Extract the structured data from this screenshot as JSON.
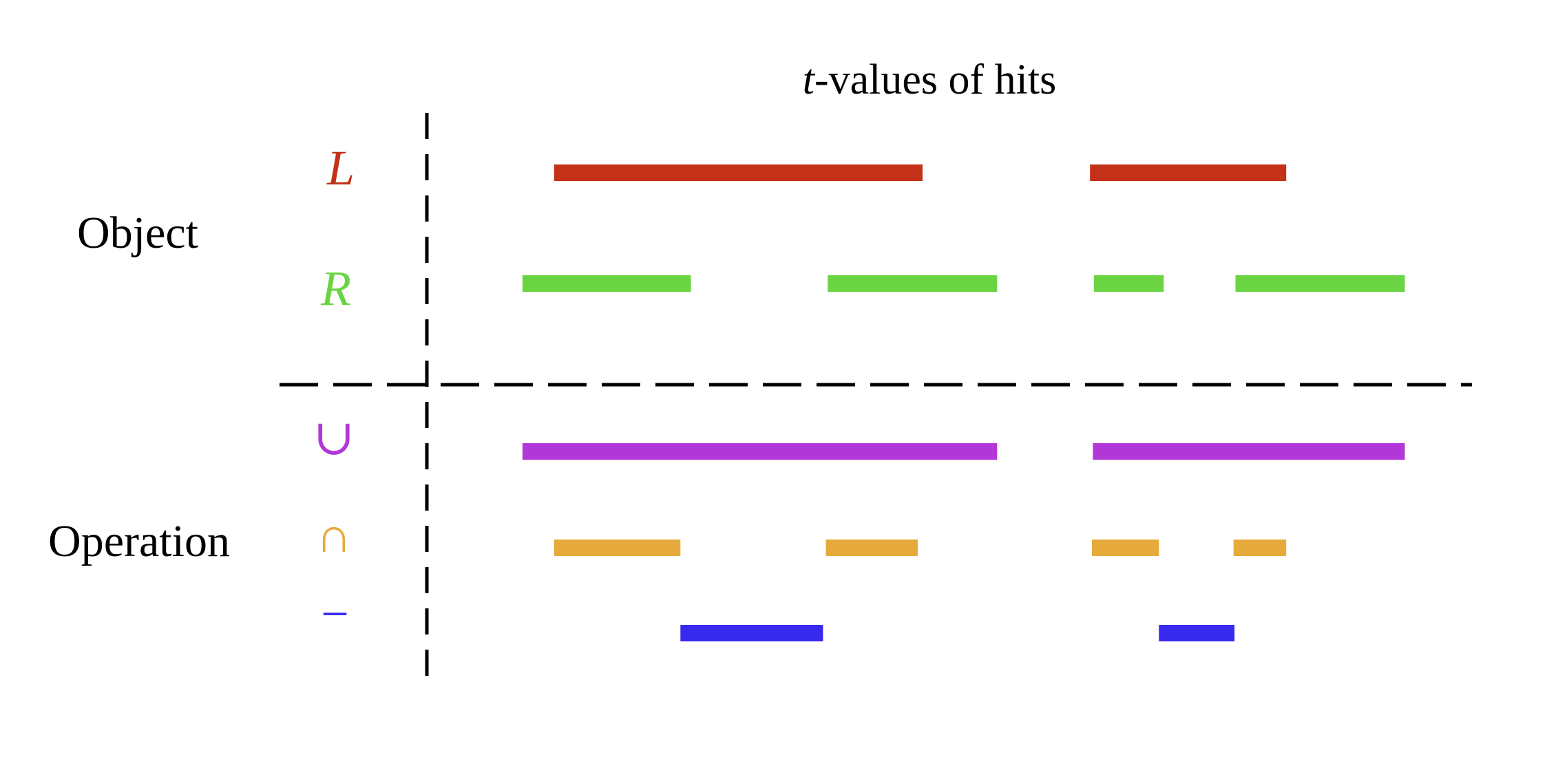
{
  "title": {
    "var": "t",
    "text": "-values of hits"
  },
  "groups": [
    {
      "label": "Object"
    },
    {
      "label": "Operation"
    }
  ],
  "rows": [
    {
      "key": "L",
      "symbol": "L",
      "color": "#c33118",
      "intervals": [
        [
          0.12,
          0.505
        ],
        [
          0.68,
          0.885
        ]
      ]
    },
    {
      "key": "R",
      "symbol": "R",
      "color": "#6ad443",
      "intervals": [
        [
          0.087,
          0.263
        ],
        [
          0.406,
          0.583
        ],
        [
          0.684,
          0.757
        ],
        [
          0.832,
          1.009
        ]
      ]
    },
    {
      "key": "union",
      "symbol": "∪",
      "color": "#b237d9",
      "intervals": [
        [
          0.087,
          0.583
        ],
        [
          0.683,
          1.009
        ]
      ]
    },
    {
      "key": "intersection",
      "symbol": "∩",
      "color": "#e6aa3c",
      "intervals": [
        [
          0.12,
          0.252
        ],
        [
          0.404,
          0.5
        ],
        [
          0.682,
          0.752
        ],
        [
          0.83,
          0.885
        ]
      ]
    },
    {
      "key": "difference",
      "symbol": "−",
      "color": "#3729ee",
      "intervals": [
        [
          0.252,
          0.401
        ],
        [
          0.752,
          0.831
        ]
      ]
    }
  ]
}
